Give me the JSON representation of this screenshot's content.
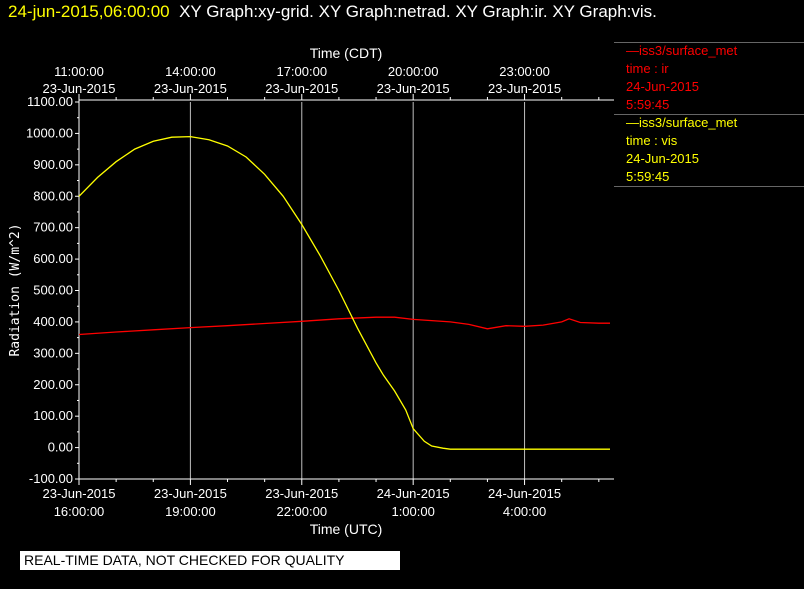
{
  "header": {
    "timestamp": "24-jun-2015,06:00:00",
    "graphs": "XY Graph:xy-grid.  XY Graph:netrad.  XY Graph:ir.  XY Graph:vis."
  },
  "legend": [
    {
      "line1": "iss3/surface_met",
      "line2": "time : ir",
      "date": "24-Jun-2015",
      "time": "5:59:45",
      "color": "#ff0000"
    },
    {
      "line1": "iss3/surface_met",
      "line2": "time : vis",
      "date": "24-Jun-2015",
      "time": "5:59:45",
      "color": "#ffff00"
    }
  ],
  "quality_notice": "REAL-TIME DATA, NOT CHECKED FOR QUALITY",
  "chart_data": {
    "type": "line",
    "title": "",
    "top_axis_label": "Time (CDT)",
    "xlabel": "Time (UTC)",
    "ylabel": "Radiation  (W/m^2)",
    "ylim": [
      -100,
      1100
    ],
    "yticks": [
      -100,
      0,
      100,
      200,
      300,
      400,
      500,
      600,
      700,
      800,
      900,
      1000,
      1100
    ],
    "ytick_labels": [
      "-100.00",
      "0.00",
      "100.00",
      "200.00",
      "300.00",
      "400.00",
      "500.00",
      "600.00",
      "700.00",
      "800.00",
      "900.00",
      "1000.00",
      "1100.00"
    ],
    "xlim_hours_utc": [
      16.0,
      30.5
    ],
    "bottom_ticks": [
      {
        "date": "23-Jun-2015",
        "time": "16:00:00",
        "h": 16
      },
      {
        "date": "23-Jun-2015",
        "time": "19:00:00",
        "h": 19
      },
      {
        "date": "23-Jun-2015",
        "time": "22:00:00",
        "h": 22
      },
      {
        "date": "24-Jun-2015",
        "time": "1:00:00",
        "h": 25
      },
      {
        "date": "24-Jun-2015",
        "time": "4:00:00",
        "h": 28
      }
    ],
    "top_ticks": [
      {
        "time": "11:00:00",
        "date": "23-Jun-2015",
        "h": 16
      },
      {
        "time": "14:00:00",
        "date": "23-Jun-2015",
        "h": 19
      },
      {
        "time": "17:00:00",
        "date": "23-Jun-2015",
        "h": 22
      },
      {
        "time": "20:00:00",
        "date": "23-Jun-2015",
        "h": 25
      },
      {
        "time": "23:00:00",
        "date": "23-Jun-2015",
        "h": 28
      }
    ],
    "grid": "vertical lines at major time ticks",
    "series": [
      {
        "name": "time : ir",
        "color": "#ff0000",
        "x": [
          16.0,
          17.0,
          18.0,
          19.0,
          20.0,
          21.0,
          22.0,
          23.0,
          24.0,
          24.5,
          25.0,
          26.0,
          26.5,
          27.0,
          27.5,
          28.0,
          28.5,
          29.0,
          29.2,
          29.5,
          30.0,
          30.3
        ],
        "y": [
          360,
          368,
          375,
          382,
          388,
          395,
          402,
          410,
          415,
          415,
          408,
          400,
          392,
          378,
          388,
          386,
          390,
          400,
          410,
          398,
          396,
          396
        ]
      },
      {
        "name": "time : vis",
        "color": "#ffff00",
        "x": [
          16.0,
          16.5,
          17.0,
          17.5,
          18.0,
          18.5,
          19.0,
          19.5,
          20.0,
          20.5,
          21.0,
          21.5,
          22.0,
          22.5,
          23.0,
          23.5,
          24.0,
          24.2,
          24.5,
          24.8,
          25.0,
          25.3,
          25.5,
          25.8,
          26.0,
          26.3,
          27.0,
          28.0,
          29.0,
          30.3
        ],
        "y": [
          800,
          860,
          910,
          950,
          975,
          988,
          990,
          980,
          960,
          925,
          870,
          800,
          710,
          610,
          500,
          380,
          270,
          230,
          180,
          120,
          60,
          20,
          5,
          -2,
          -5,
          -5,
          -5,
          -5,
          -5,
          -5
        ]
      }
    ]
  }
}
